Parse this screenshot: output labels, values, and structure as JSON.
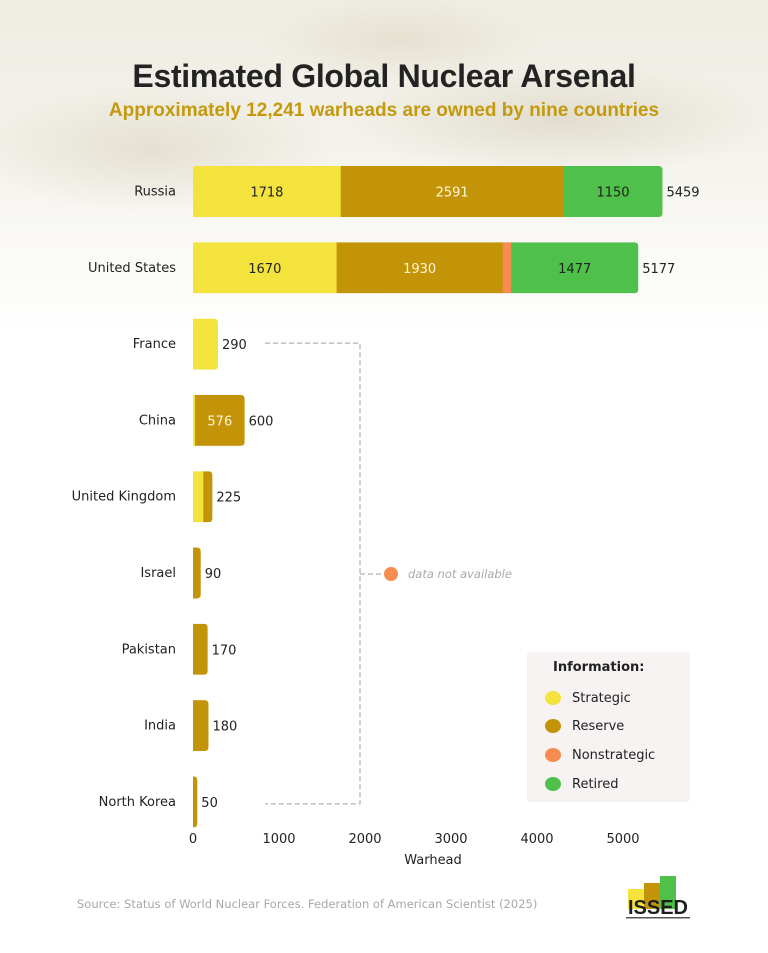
{
  "header": {
    "title": "Estimated Global Nuclear Arsenal",
    "subtitle": "Approximately 12,241 warheads are owned by nine countries"
  },
  "colors": {
    "Strategic": "#f4e23d",
    "Reserve": "#c49408",
    "Nonstrategic": "#f68c4f",
    "Retired": "#4fc04a",
    "title": "#232323",
    "subtitle": "#c49a0c"
  },
  "chart_data": {
    "type": "bar",
    "orientation": "horizontal",
    "stacked": true,
    "title": "Estimated Global Nuclear Arsenal",
    "subtitle": "Approximately 12,241 warheads are owned by nine countries",
    "xlabel": "Warhead",
    "ylabel": "",
    "xlim": [
      0,
      5600
    ],
    "xticks": [
      0,
      1000,
      2000,
      3000,
      4000,
      5000
    ],
    "grid": false,
    "legend_title": "Information:",
    "legend_position": "bottom-right",
    "categories": [
      "Russia",
      "United States",
      "France",
      "China",
      "United Kingdom",
      "Israel",
      "Pakistan",
      "India",
      "North Korea"
    ],
    "series": [
      {
        "name": "Strategic",
        "values": [
          1718,
          1670,
          290,
          24,
          120,
          0,
          0,
          0,
          0
        ]
      },
      {
        "name": "Reserve",
        "values": [
          2591,
          1930,
          0,
          576,
          105,
          90,
          170,
          180,
          50
        ]
      },
      {
        "name": "Nonstrategic",
        "values": [
          0,
          100,
          0,
          0,
          0,
          0,
          0,
          0,
          0
        ]
      },
      {
        "name": "Retired",
        "values": [
          1150,
          1477,
          0,
          0,
          0,
          0,
          0,
          0,
          0
        ]
      }
    ],
    "segment_labels": [
      {
        "category": "Russia",
        "series": "Strategic",
        "text": "1718"
      },
      {
        "category": "Russia",
        "series": "Reserve",
        "text": "2591"
      },
      {
        "category": "Russia",
        "series": "Retired",
        "text": "1150"
      },
      {
        "category": "United States",
        "series": "Strategic",
        "text": "1670"
      },
      {
        "category": "United States",
        "series": "Reserve",
        "text": "1930"
      },
      {
        "category": "United States",
        "series": "Retired",
        "text": "1477"
      },
      {
        "category": "China",
        "series": "Reserve",
        "text": "576"
      }
    ],
    "totals": [
      5459,
      5177,
      290,
      600,
      225,
      90,
      170,
      180,
      50
    ],
    "annotation": {
      "text": "data not available",
      "applies_to": [
        "France",
        "China",
        "United Kingdom",
        "Israel",
        "Pakistan",
        "India",
        "North Korea"
      ]
    }
  },
  "legend": {
    "title": "Information:",
    "items": [
      {
        "label": "Strategic",
        "color": "#f4e23d"
      },
      {
        "label": "Reserve",
        "color": "#c49408"
      },
      {
        "label": "Nonstrategic",
        "color": "#f68c4f"
      },
      {
        "label": "Retired",
        "color": "#4fc04a"
      }
    ]
  },
  "footer": {
    "source": "Source: Status of World Nuclear Forces. Federation of American Scientist (2025)",
    "logo_text": "ISSED"
  }
}
